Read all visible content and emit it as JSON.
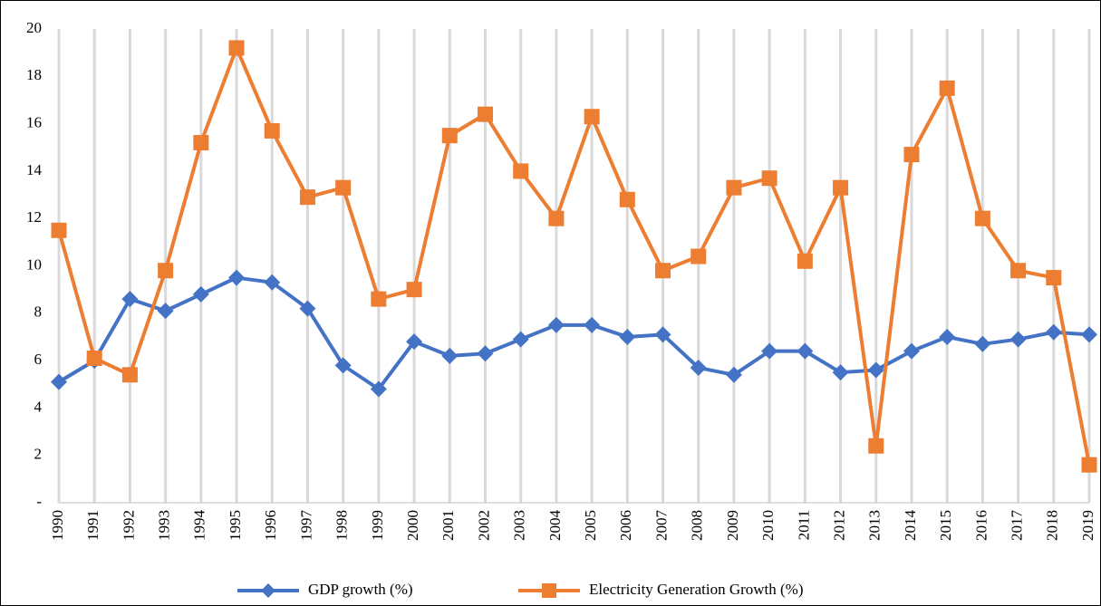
{
  "chart_data": {
    "type": "line",
    "x": [
      1990,
      1991,
      1992,
      1993,
      1994,
      1995,
      1996,
      1997,
      1998,
      1999,
      2000,
      2001,
      2002,
      2003,
      2004,
      2005,
      2006,
      2007,
      2008,
      2009,
      2010,
      2011,
      2012,
      2013,
      2014,
      2015,
      2016,
      2017,
      2018,
      2019
    ],
    "xlim": [
      1990,
      2019
    ],
    "ylim": [
      0,
      20
    ],
    "yticks": [
      {
        "value": 0,
        "label": "-"
      },
      2,
      4,
      6,
      8,
      10,
      12,
      14,
      16,
      18,
      20
    ],
    "grid": "vertical",
    "legend": "bottom",
    "series": [
      {
        "name": "GDP growth (%)",
        "color": "#4472c4",
        "marker": "diamond",
        "values": [
          5.1,
          6.0,
          8.6,
          8.1,
          8.8,
          9.5,
          9.3,
          8.2,
          5.8,
          4.8,
          6.8,
          6.2,
          6.3,
          6.9,
          7.5,
          7.5,
          7.0,
          7.1,
          5.7,
          5.4,
          6.4,
          6.4,
          5.5,
          5.6,
          6.4,
          7.0,
          6.7,
          6.9,
          7.2,
          7.1
        ]
      },
      {
        "name": "Electricity Generation Growth (%)",
        "color": "#ed7d31",
        "marker": "square",
        "values": [
          11.5,
          6.1,
          5.4,
          9.8,
          15.2,
          19.2,
          15.7,
          12.9,
          13.3,
          8.6,
          9.0,
          15.5,
          16.4,
          14.0,
          12.0,
          16.3,
          12.8,
          9.8,
          10.4,
          13.3,
          13.7,
          10.2,
          13.3,
          2.4,
          14.7,
          17.5,
          12.0,
          9.8,
          9.5,
          1.6
        ]
      }
    ]
  }
}
